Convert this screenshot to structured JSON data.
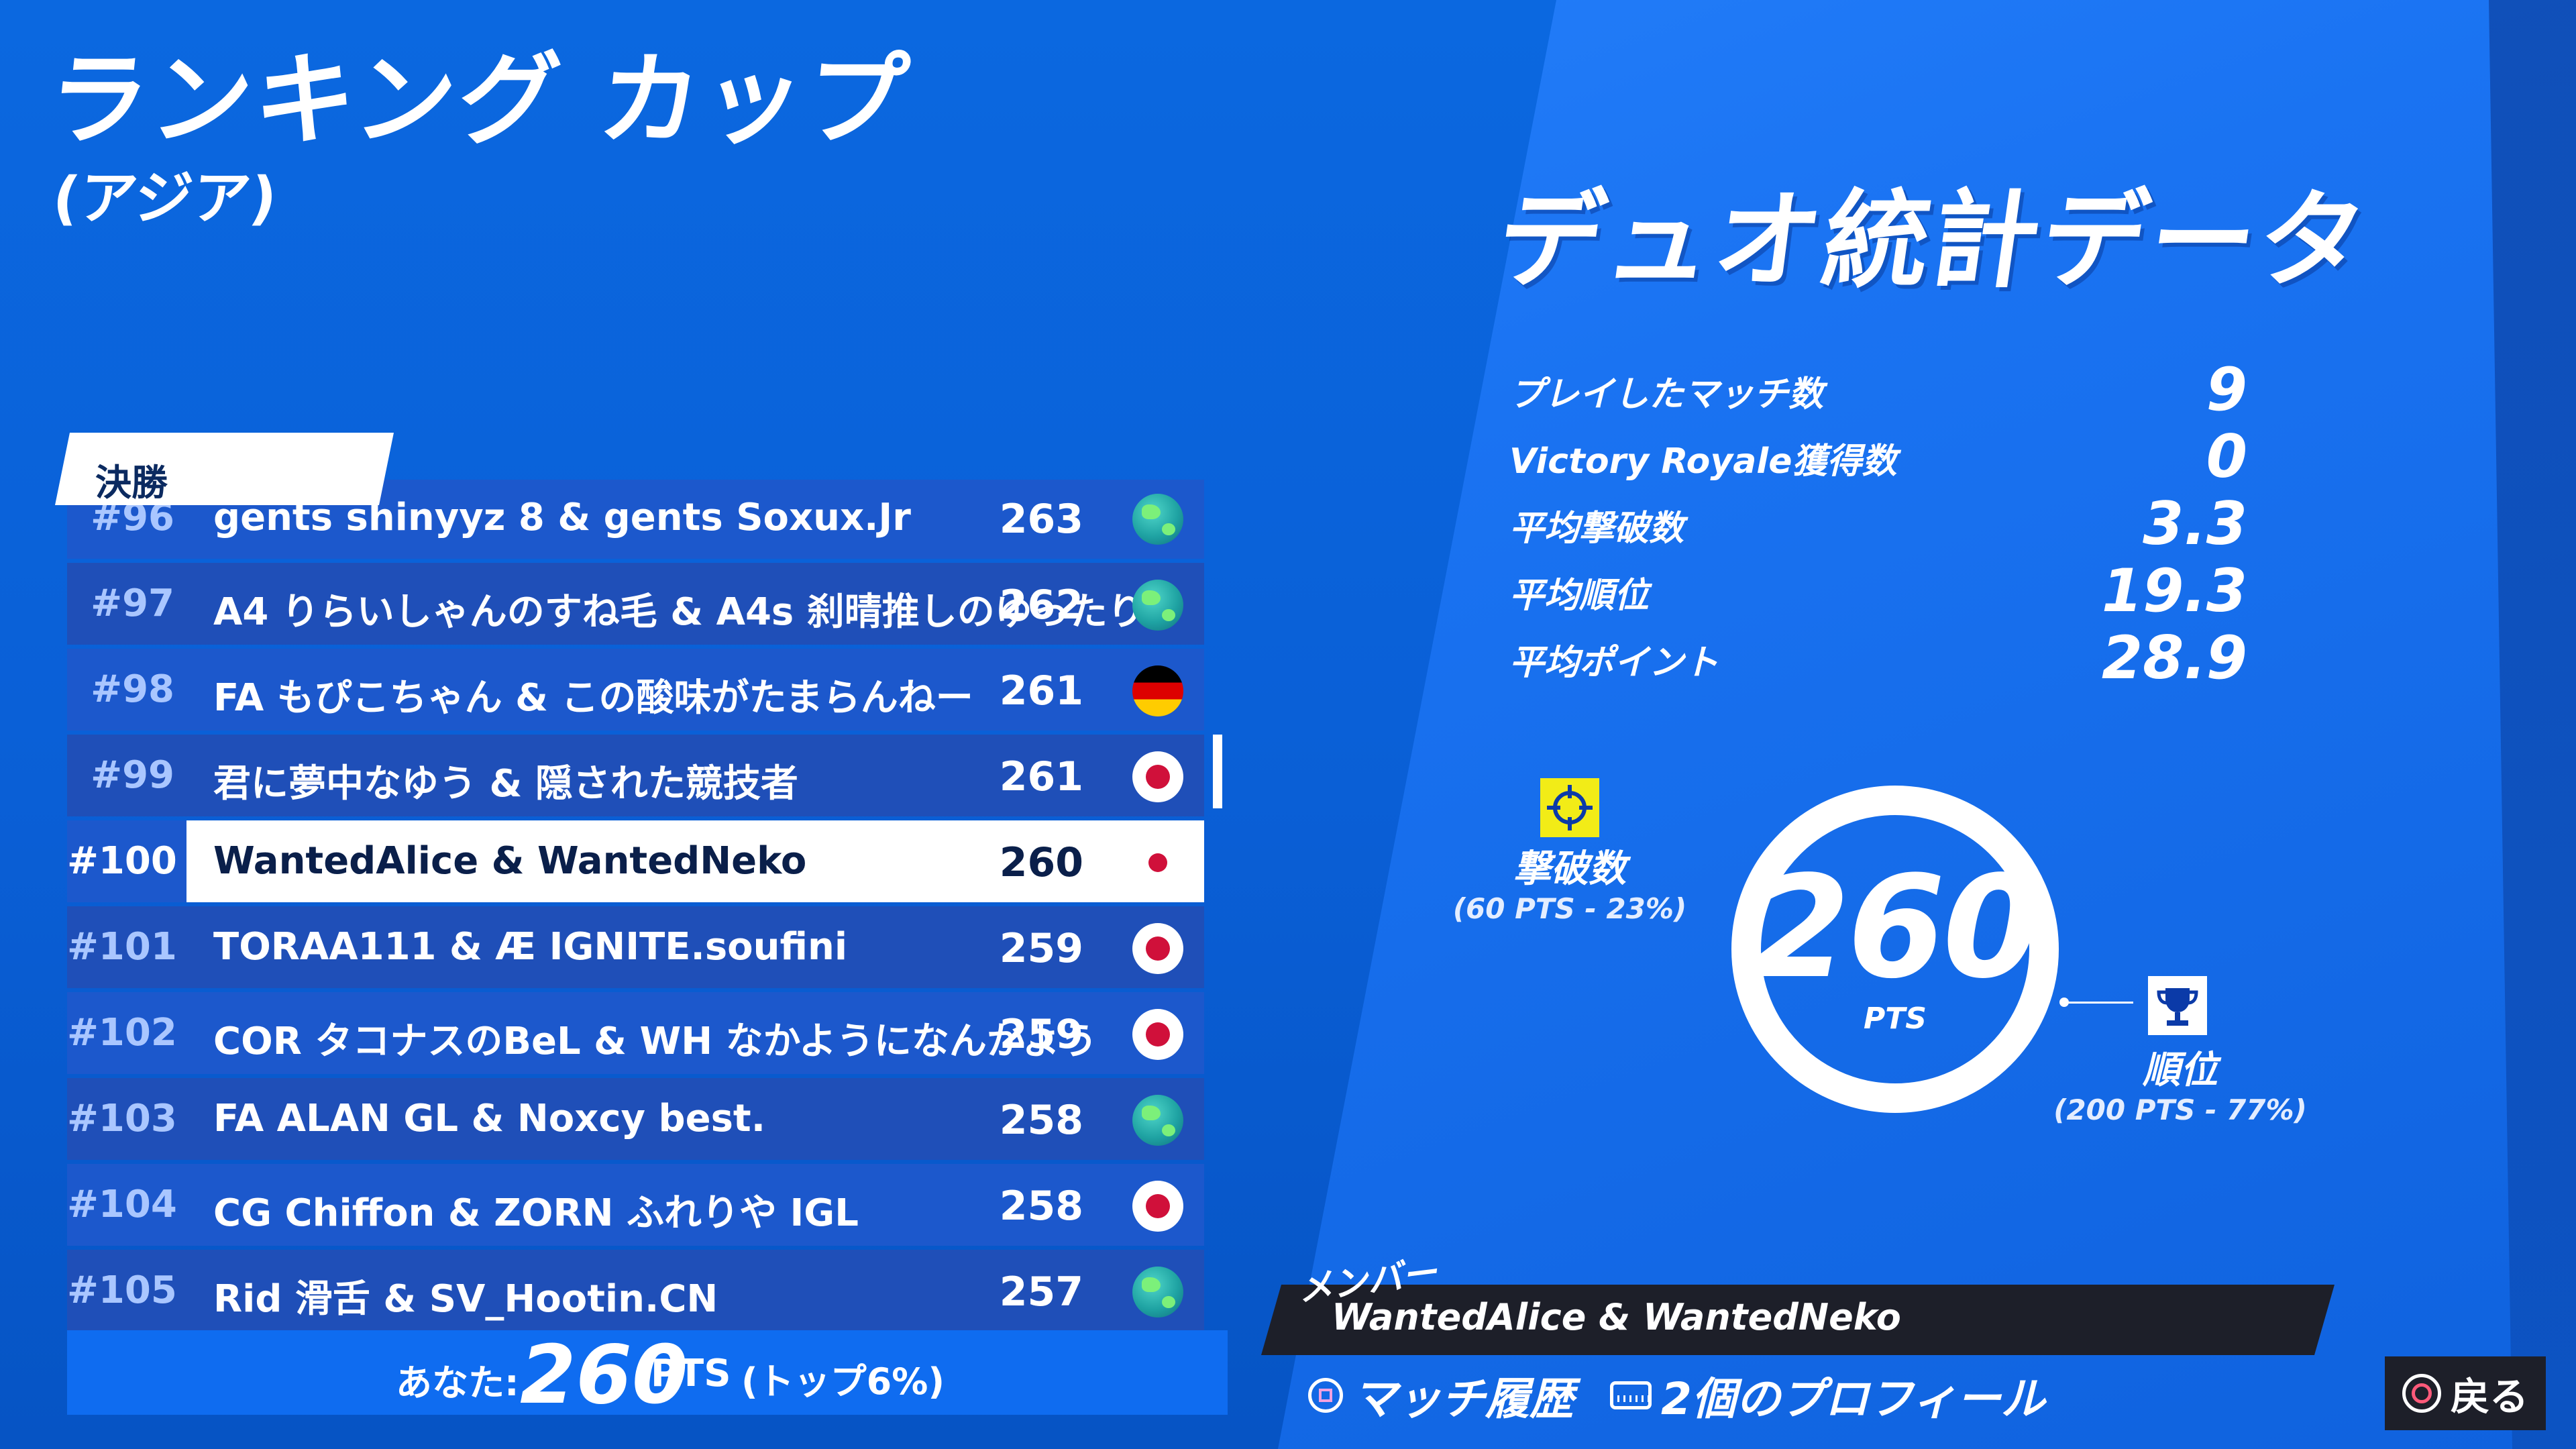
{
  "header": {
    "title": "ランキング カップ",
    "subtitle": "(アジア)"
  },
  "leaderboard": {
    "tab_label": "決勝",
    "rows": [
      {
        "rank": "#96",
        "names": "gents shinyyz 8 & gents Soxux.Jr",
        "points": "263",
        "flag": "globe-icon"
      },
      {
        "rank": "#97",
        "names": "A4 りらいしゃんのすね毛 & A4s 刹晴推しのゆったり",
        "points": "262",
        "flag": "globe-icon"
      },
      {
        "rank": "#98",
        "names": "FA もぴこちゃん & この酸味がたまらんねー",
        "points": "261",
        "flag": "germany-flag-icon"
      },
      {
        "rank": "#99",
        "names": "君に夢中なゆう & 隠された競技者",
        "points": "261",
        "flag": "japan-flag-icon"
      },
      {
        "rank": "#100",
        "names": "WantedAlice & WantedNeko",
        "points": "260",
        "flag": "japan-flag-icon",
        "highlighted": true
      },
      {
        "rank": "#101",
        "names": "TORAA111 & Æ IGNITE.soufini",
        "points": "259",
        "flag": "japan-flag-icon"
      },
      {
        "rank": "#102",
        "names": "COR タコナスのBeL & WH なかようになんかよう",
        "points": "259",
        "flag": "japan-flag-icon"
      },
      {
        "rank": "#103",
        "names": "FA ALAN GL & Noxcy best.",
        "points": "258",
        "flag": "globe-icon"
      },
      {
        "rank": "#104",
        "names": "CG Chiffon & ZORN ふれりや IGL",
        "points": "258",
        "flag": "japan-flag-icon"
      },
      {
        "rank": "#105",
        "names": "Rid 滑舌 & SV_Hootin.CN",
        "points": "257",
        "flag": "globe-icon"
      }
    ],
    "you": {
      "label": "あなた:",
      "value": "260",
      "unit": "PTS",
      "rank_text": "(トップ6%)"
    }
  },
  "stats": {
    "title": "デュオ統計データ",
    "rows": [
      {
        "label": "プレイしたマッチ数",
        "value": "9"
      },
      {
        "label": "Victory Royale獲得数",
        "value": "0"
      },
      {
        "label": "平均撃破数",
        "value": "3.3"
      },
      {
        "label": "平均順位",
        "value": "19.3"
      },
      {
        "label": "平均ポイント",
        "value": "28.9"
      }
    ]
  },
  "points_breakdown": {
    "total": "260",
    "unit": "PTS",
    "eliminations": {
      "label": "撃破数",
      "detail": "(60 PTS - 23%)",
      "fraction": 0.23,
      "color": "#f2ec17"
    },
    "placement": {
      "label": "順位",
      "detail": "(200 PTS - 77%)",
      "fraction": 0.77,
      "color": "#ffffff"
    }
  },
  "member": {
    "label": "メンバー",
    "names": "WantedAlice & WantedNeko"
  },
  "controls": {
    "match_history": "マッチ履歴",
    "profiles": "2個のプロフィール",
    "back": "戻る"
  }
}
